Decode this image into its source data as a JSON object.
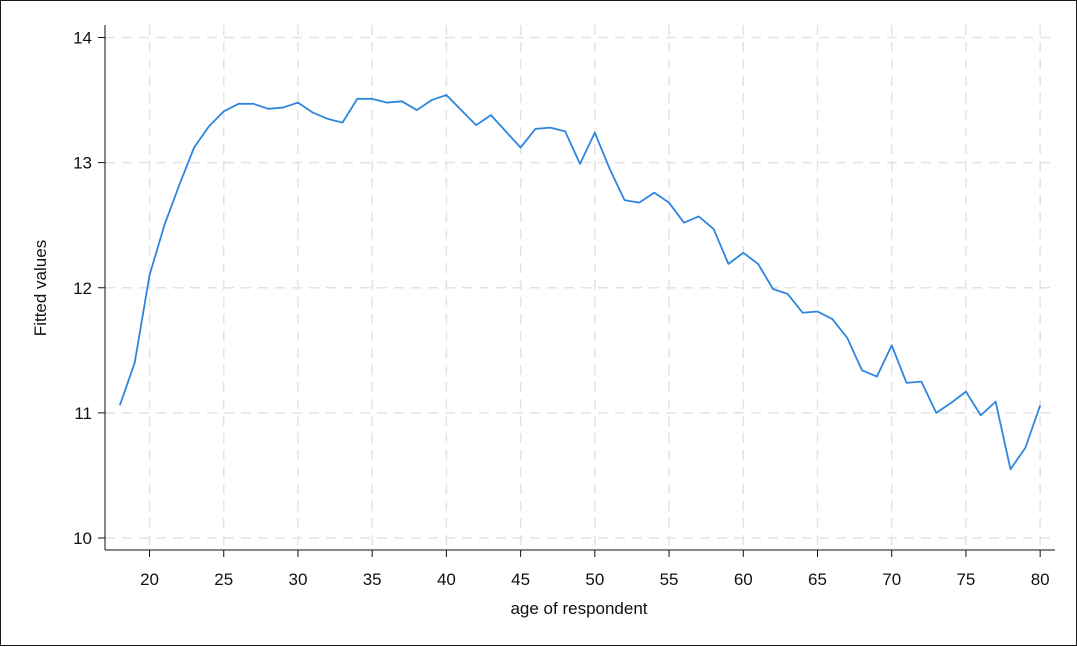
{
  "chart_data": {
    "type": "line",
    "xlabel": "age of respondent",
    "ylabel": "Fitted values",
    "xlim": [
      17,
      81
    ],
    "ylim": [
      10,
      14.1
    ],
    "xticks": [
      "20",
      "25",
      "30",
      "35",
      "40",
      "45",
      "50",
      "55",
      "60",
      "65",
      "70",
      "75",
      "80"
    ],
    "yticks": [
      "10",
      "11",
      "12",
      "13",
      "14"
    ],
    "grid": true,
    "line_color": "#2e86de",
    "series": [
      {
        "x": [
          18,
          19,
          20,
          21,
          22,
          23,
          24,
          25,
          26,
          27,
          28,
          29,
          30,
          31,
          32,
          33,
          34,
          35,
          36,
          37,
          38,
          39,
          40,
          41,
          42,
          43,
          44,
          45,
          46,
          47,
          48,
          49,
          50,
          51,
          52,
          53,
          54,
          55,
          56,
          57,
          58,
          59,
          60,
          61,
          62,
          63,
          64,
          65,
          66,
          67,
          68,
          69,
          70,
          71,
          72,
          73,
          74,
          75,
          76,
          77,
          78,
          79,
          80
        ],
        "values": [
          11.06,
          11.4,
          12.1,
          12.5,
          12.82,
          13.12,
          13.29,
          13.41,
          13.47,
          13.47,
          13.43,
          13.44,
          13.48,
          13.4,
          13.35,
          13.32,
          13.51,
          13.51,
          13.48,
          13.49,
          13.42,
          13.5,
          13.54,
          13.42,
          13.3,
          13.38,
          13.25,
          13.12,
          13.27,
          13.28,
          13.25,
          12.99,
          13.24,
          12.95,
          12.7,
          12.68,
          12.76,
          12.68,
          12.52,
          12.57,
          12.47,
          12.19,
          12.28,
          12.19,
          11.99,
          11.95,
          11.8,
          11.81,
          11.75,
          11.6,
          11.34,
          11.29,
          11.54,
          11.24,
          11.25,
          11.0,
          11.08,
          11.17,
          10.98,
          11.09,
          10.55,
          10.72,
          11.06
        ]
      }
    ]
  }
}
